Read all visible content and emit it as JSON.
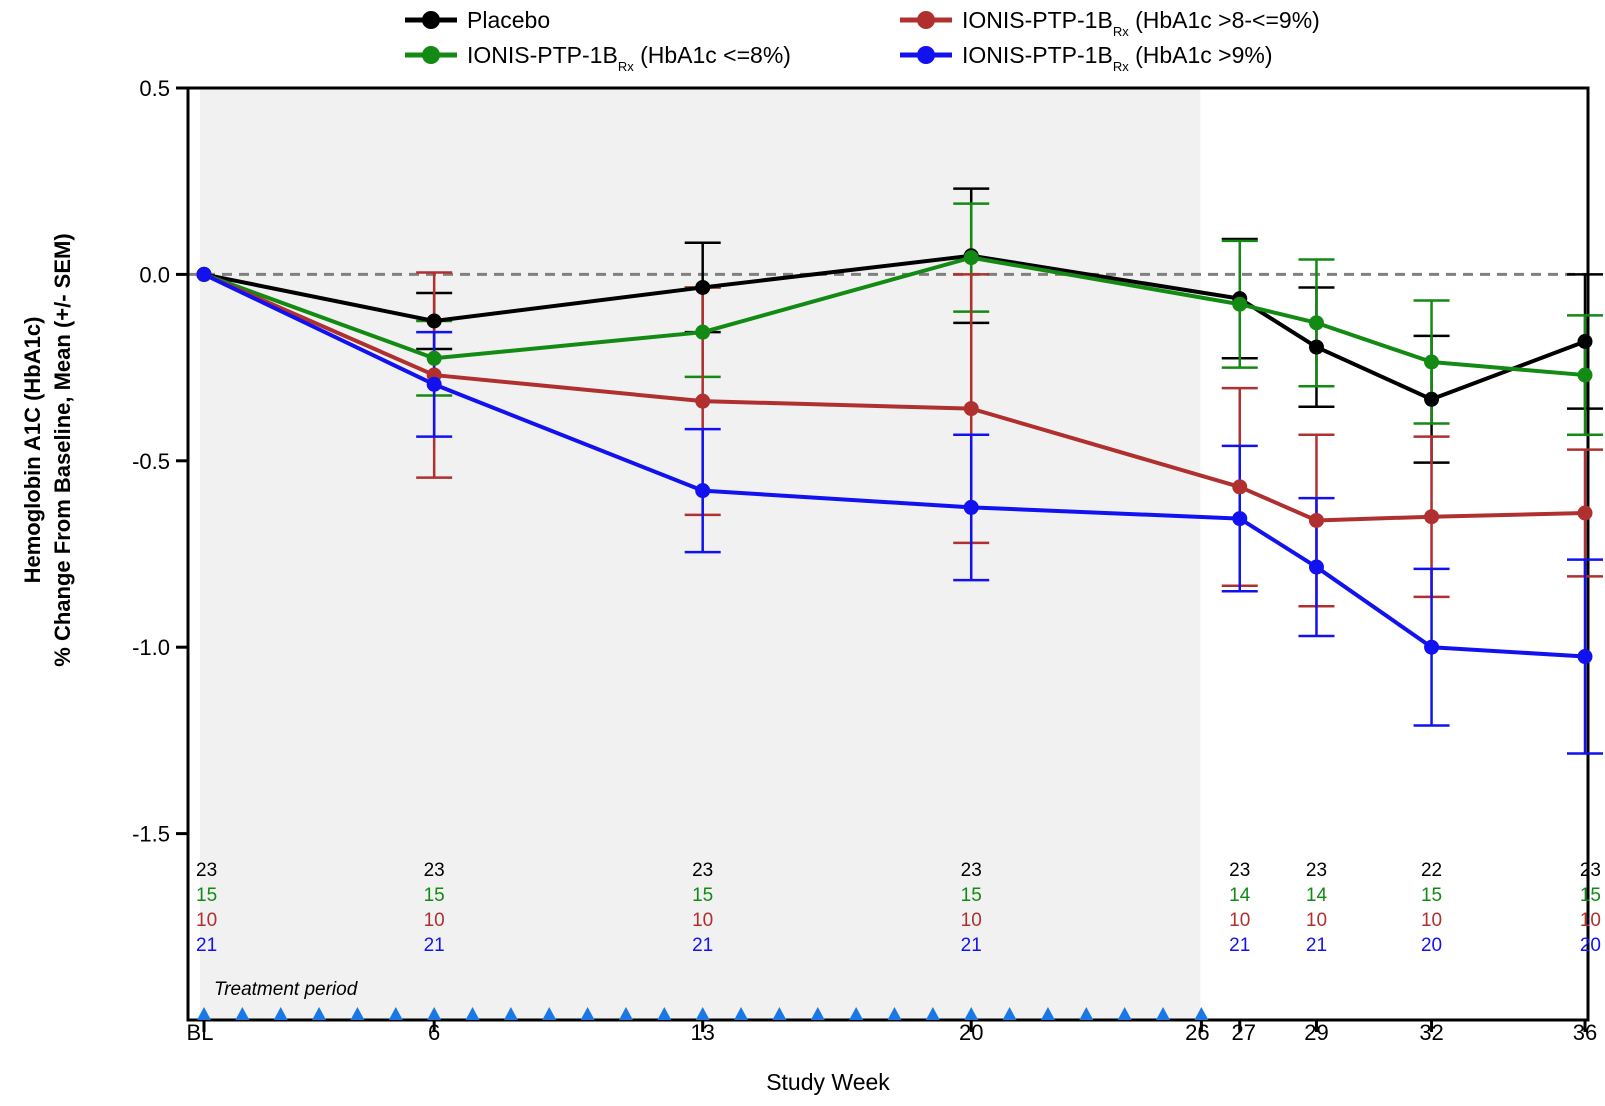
{
  "chart_data": {
    "type": "line",
    "title": "",
    "xlabel": "Study Week",
    "ylabel_lines": [
      "Hemoglobin A1C (HbA1c)",
      "% Change From Baseline, Mean (+/- SEM)"
    ],
    "x_ticks": [
      {
        "week": 0,
        "label": "BL"
      },
      {
        "week": 6,
        "label": "6"
      },
      {
        "week": 13,
        "label": "13"
      },
      {
        "week": 20,
        "label": "20"
      },
      {
        "week": 26,
        "label": "26"
      },
      {
        "week": 27,
        "label": "27"
      },
      {
        "week": 29,
        "label": "29"
      },
      {
        "week": 32,
        "label": "32"
      },
      {
        "week": 36,
        "label": "36"
      }
    ],
    "y_ticks": [
      0.5,
      0.0,
      -0.5,
      -1.0,
      -1.5
    ],
    "y_tick_labels": [
      "0.5",
      "0.0",
      "-0.5",
      "-1.0",
      "-1.5"
    ],
    "ylim": [
      -2.0,
      0.5
    ],
    "xlim": [
      0,
      36
    ],
    "reference_line_y": 0,
    "grid": false,
    "legend_position": "top",
    "treatment_period": {
      "start_week": 0,
      "end_week": 26,
      "label": "Treatment period",
      "color": "#f0f1f0"
    },
    "dose_markers": {
      "weeks": [
        0,
        1,
        2,
        3,
        4,
        5,
        6,
        7,
        8,
        9,
        10,
        11,
        12,
        13,
        14,
        15,
        16,
        17,
        18,
        19,
        20,
        21,
        22,
        23,
        24,
        25,
        26
      ],
      "color": "#1a77e6"
    },
    "series": [
      {
        "name": "Placebo",
        "name_main": "Placebo",
        "name_sub": "",
        "name_tail": "",
        "color": "#000000",
        "x": [
          0,
          6,
          13,
          20,
          27,
          29,
          32,
          36
        ],
        "values": [
          0.0,
          -0.125,
          -0.035,
          0.05,
          -0.065,
          -0.195,
          -0.335,
          -0.18
        ],
        "sem": [
          0.0,
          0.075,
          0.12,
          0.18,
          0.16,
          0.16,
          0.17,
          0.18
        ],
        "counts": [
          "23",
          "23",
          "23",
          "23",
          "23",
          "23",
          "22",
          "23"
        ]
      },
      {
        "name": "IONIS-PTP-1BRx (HbA1c <=8%)",
        "name_main": "IONIS-PTP-1B",
        "name_sub": "Rx",
        "name_tail": " (HbA1c <=8%)",
        "color": "#138a13",
        "x": [
          0,
          6,
          13,
          20,
          27,
          29,
          32,
          36
        ],
        "values": [
          0.0,
          -0.225,
          -0.155,
          0.045,
          -0.08,
          -0.13,
          -0.235,
          -0.27
        ],
        "sem": [
          0.0,
          0.1,
          0.12,
          0.145,
          0.17,
          0.17,
          0.165,
          0.16
        ],
        "counts": [
          "15",
          "15",
          "15",
          "15",
          "14",
          "14",
          "15",
          "15"
        ]
      },
      {
        "name": "IONIS-PTP-1BRx (HbA1c >8-<=9%)",
        "name_main": "IONIS-PTP-1B",
        "name_sub": "Rx",
        "name_tail": " (HbA1c >8-<=9%)",
        "color": "#b03030",
        "x": [
          0,
          6,
          13,
          20,
          27,
          29,
          32,
          36
        ],
        "values": [
          0.0,
          -0.27,
          -0.34,
          -0.36,
          -0.57,
          -0.66,
          -0.65,
          -0.64
        ],
        "sem": [
          0.0,
          0.275,
          0.305,
          0.36,
          0.265,
          0.23,
          0.215,
          0.17
        ],
        "counts": [
          "10",
          "10",
          "10",
          "10",
          "10",
          "10",
          "10",
          "10"
        ]
      },
      {
        "name": "IONIS-PTP-1BRx (HbA1c >9%)",
        "name_main": "IONIS-PTP-1B",
        "name_sub": "Rx",
        "name_tail": " (HbA1c >9%)",
        "color": "#1212f0",
        "x": [
          0,
          6,
          13,
          20,
          27,
          29,
          32,
          36
        ],
        "values": [
          0.0,
          -0.295,
          -0.58,
          -0.625,
          -0.655,
          -0.785,
          -1.0,
          -1.025
        ],
        "sem": [
          0.0,
          0.14,
          0.165,
          0.195,
          0.195,
          0.185,
          0.21,
          0.26
        ],
        "counts": [
          "21",
          "21",
          "21",
          "21",
          "21",
          "21",
          "20",
          "20"
        ]
      }
    ]
  }
}
